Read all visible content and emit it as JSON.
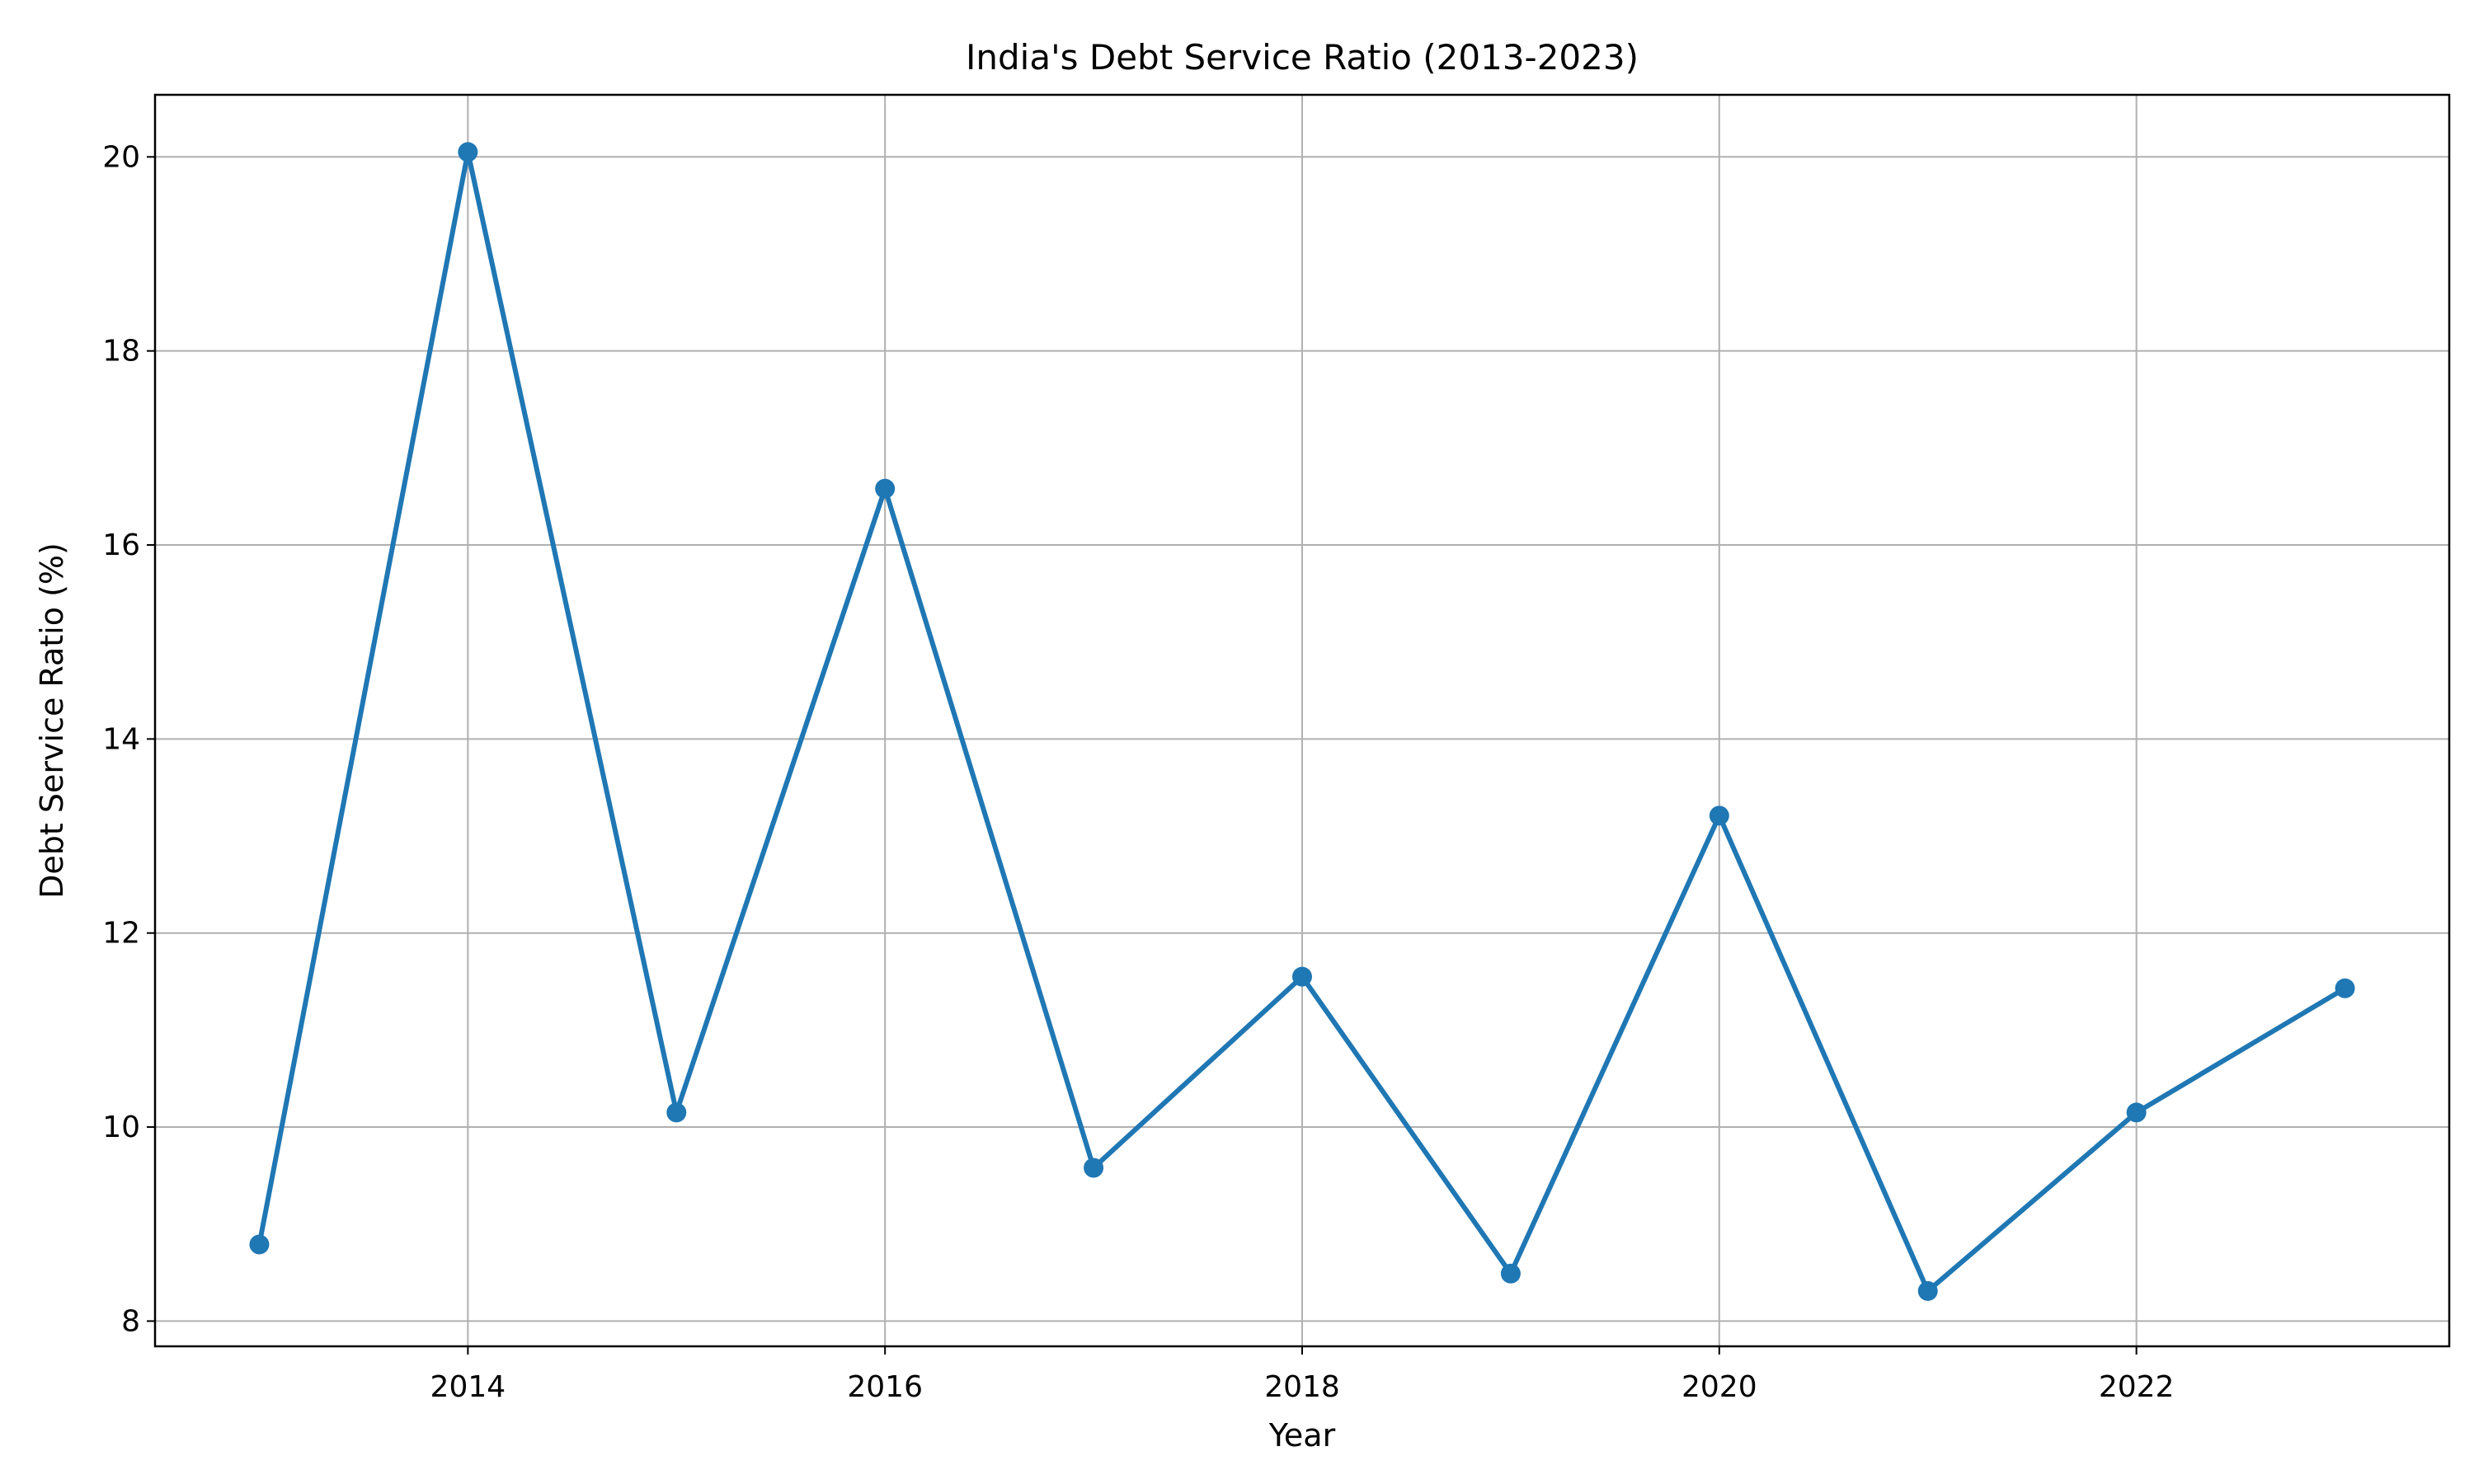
{
  "chart_data": {
    "type": "line",
    "title": "India's Debt Service Ratio (2013-2023)",
    "xlabel": "Year",
    "ylabel": "Debt Service Ratio (%)",
    "x": [
      2013,
      2014,
      2015,
      2016,
      2017,
      2018,
      2019,
      2020,
      2021,
      2022,
      2023
    ],
    "series": [
      {
        "values": [
          8.79,
          20.05,
          10.15,
          16.58,
          9.58,
          11.55,
          8.49,
          13.21,
          8.31,
          10.15,
          11.43
        ],
        "color": "#1f77b4"
      }
    ],
    "xlim": [
      2012.5,
      2023.5
    ],
    "ylim": [
      7.74,
      20.64
    ],
    "xticks": [
      2014,
      2016,
      2018,
      2020,
      2022
    ],
    "yticks": [
      8,
      10,
      12,
      14,
      16,
      18,
      20
    ],
    "grid": true,
    "legend": "none"
  }
}
